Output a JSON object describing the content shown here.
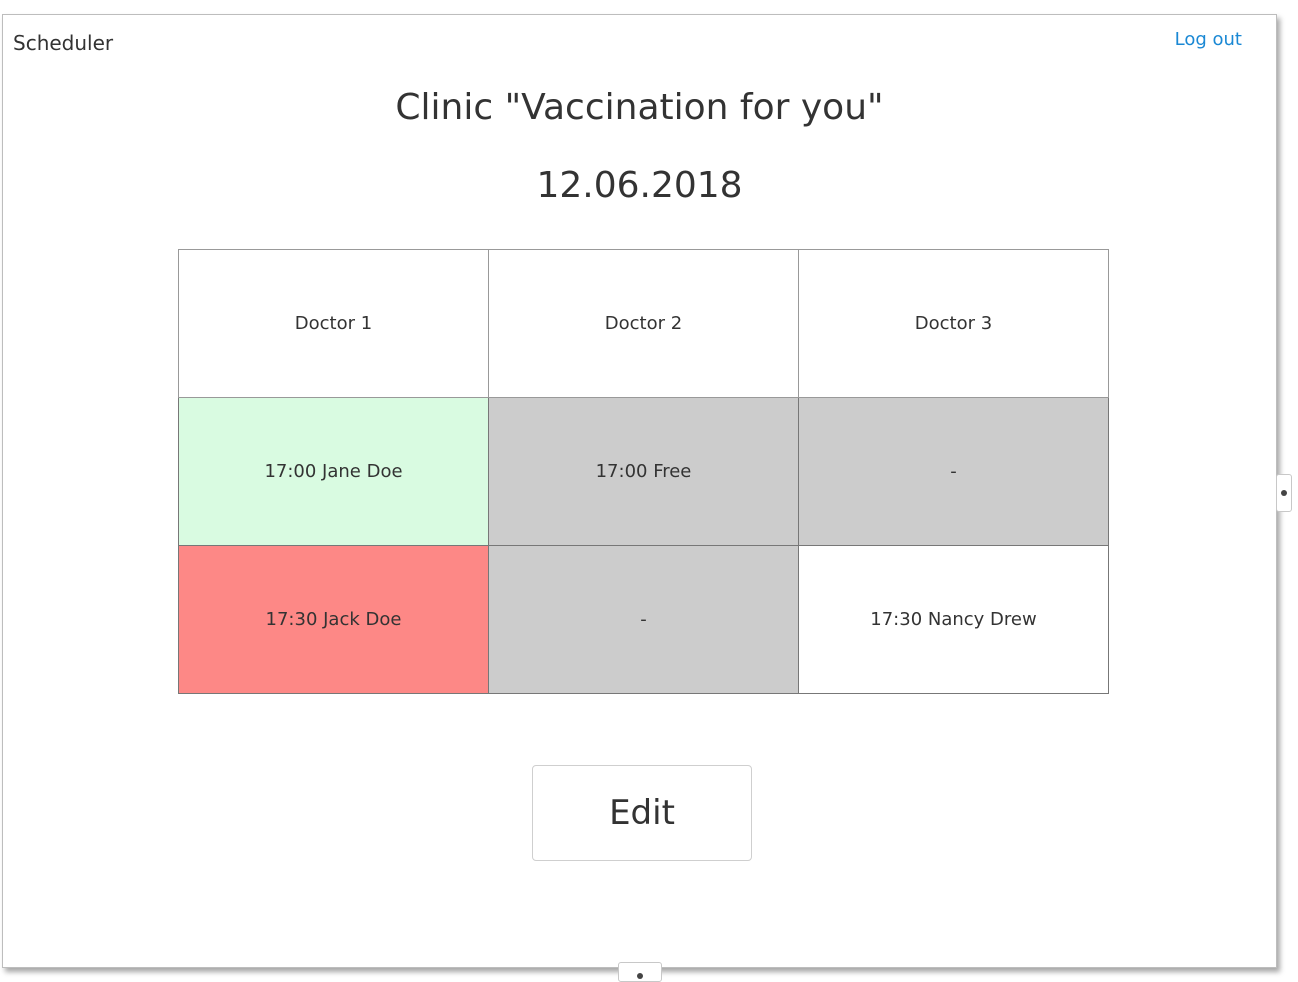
{
  "header": {
    "app_title": "Scheduler",
    "logout_label": "Log out"
  },
  "page": {
    "title": "Clinic \"Vaccination for you\"",
    "date": "12.06.2018"
  },
  "schedule": {
    "columns": [
      "Doctor 1",
      "Doctor 2",
      "Doctor 3"
    ],
    "rows": [
      [
        "17:00 Jane Doe",
        "17:00 Free",
        "-"
      ],
      [
        "17:30 Jack Doe",
        "-",
        "17:30 Nancy Drew"
      ]
    ]
  },
  "actions": {
    "edit_label": "Edit"
  },
  "colors": {
    "booked_confirmed": "#d9fbe1",
    "booked_alert": "#fd8886",
    "unavailable": "#cccccc",
    "available": "#ffffff",
    "link": "#1a88d4"
  }
}
